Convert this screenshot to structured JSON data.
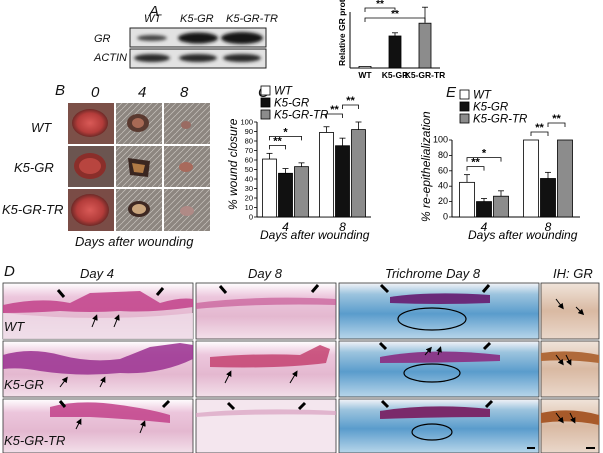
{
  "panel_a": {
    "letter": "A",
    "lanes": [
      "WT",
      "K5-GR",
      "K5-GR-TR"
    ],
    "rows": [
      "GR",
      "ACTIN"
    ]
  },
  "chart_data": [
    {
      "panel": "A",
      "type": "bar",
      "categories": [
        "WT",
        "K5-GR",
        "K5-GR-TR"
      ],
      "values": [
        1,
        20,
        28
      ],
      "errors": [
        0,
        2,
        10
      ],
      "ylabel": "Relative GR protein levels",
      "ylim": [
        0,
        35
      ],
      "colors": [
        "#ffffff",
        "#111111",
        "#8c8c8c"
      ],
      "significance": [
        {
          "from": 0,
          "to": 1,
          "label": "**"
        },
        {
          "from": 0,
          "to": 2,
          "label": "**"
        }
      ]
    },
    {
      "panel": "C",
      "type": "bar",
      "categories": [
        "4",
        "8"
      ],
      "series": [
        {
          "name": "WT",
          "values": [
            61,
            89
          ],
          "errors": [
            6,
            6
          ]
        },
        {
          "name": "K5-GR",
          "values": [
            46,
            75
          ],
          "errors": [
            5,
            8
          ]
        },
        {
          "name": "K5-GR-TR",
          "values": [
            53,
            92
          ],
          "errors": [
            4,
            8
          ]
        }
      ],
      "xlabel": "Days after wounding",
      "ylabel": "% wound closure",
      "ylim": [
        0,
        100
      ],
      "yticks": [
        0,
        10,
        20,
        30,
        40,
        50,
        60,
        70,
        80,
        90,
        100
      ],
      "legend": "top-left",
      "colors": [
        "#ffffff",
        "#111111",
        "#8c8c8c"
      ],
      "significance": [
        {
          "group": 0,
          "from": 0,
          "to": 1,
          "label": "**"
        },
        {
          "group": 0,
          "from": 0,
          "to": 2,
          "label": "*"
        },
        {
          "group": 1,
          "from": 0,
          "to": 1,
          "label": "**"
        },
        {
          "group": 1,
          "from": 1,
          "to": 2,
          "label": "**"
        }
      ]
    },
    {
      "panel": "E",
      "type": "bar",
      "categories": [
        "4",
        "8"
      ],
      "series": [
        {
          "name": "WT",
          "values": [
            45,
            100
          ],
          "errors": [
            10,
            0
          ]
        },
        {
          "name": "K5-GR",
          "values": [
            20,
            50
          ],
          "errors": [
            4,
            8
          ]
        },
        {
          "name": "K5-GR-TR",
          "values": [
            27,
            100
          ],
          "errors": [
            7,
            0
          ]
        }
      ],
      "xlabel": "Days after wounding",
      "ylabel": "% re-epithelialization",
      "ylim": [
        0,
        100
      ],
      "yticks": [
        0,
        20,
        40,
        60,
        80,
        100
      ],
      "legend": "top-left",
      "colors": [
        "#ffffff",
        "#111111",
        "#8c8c8c"
      ],
      "significance": [
        {
          "group": 0,
          "from": 0,
          "to": 1,
          "label": "**"
        },
        {
          "group": 0,
          "from": 0,
          "to": 2,
          "label": "*"
        },
        {
          "group": 1,
          "from": 0,
          "to": 1,
          "label": "**"
        },
        {
          "group": 1,
          "from": 1,
          "to": 2,
          "label": "**"
        }
      ]
    }
  ],
  "panel_b": {
    "letter": "B",
    "days": [
      "0",
      "4",
      "8"
    ],
    "rows": [
      "WT",
      "K5-GR",
      "K5-GR-TR"
    ],
    "xlabel": "Days after wounding"
  },
  "panel_c": {
    "letter": "C"
  },
  "panel_e": {
    "letter": "E"
  },
  "panel_d": {
    "letter": "D",
    "columns": [
      "Day 4",
      "Day 8",
      "Trichrome Day 8",
      "IH: GR"
    ],
    "rows": [
      "WT",
      "K5-GR",
      "K5-GR-TR"
    ]
  }
}
